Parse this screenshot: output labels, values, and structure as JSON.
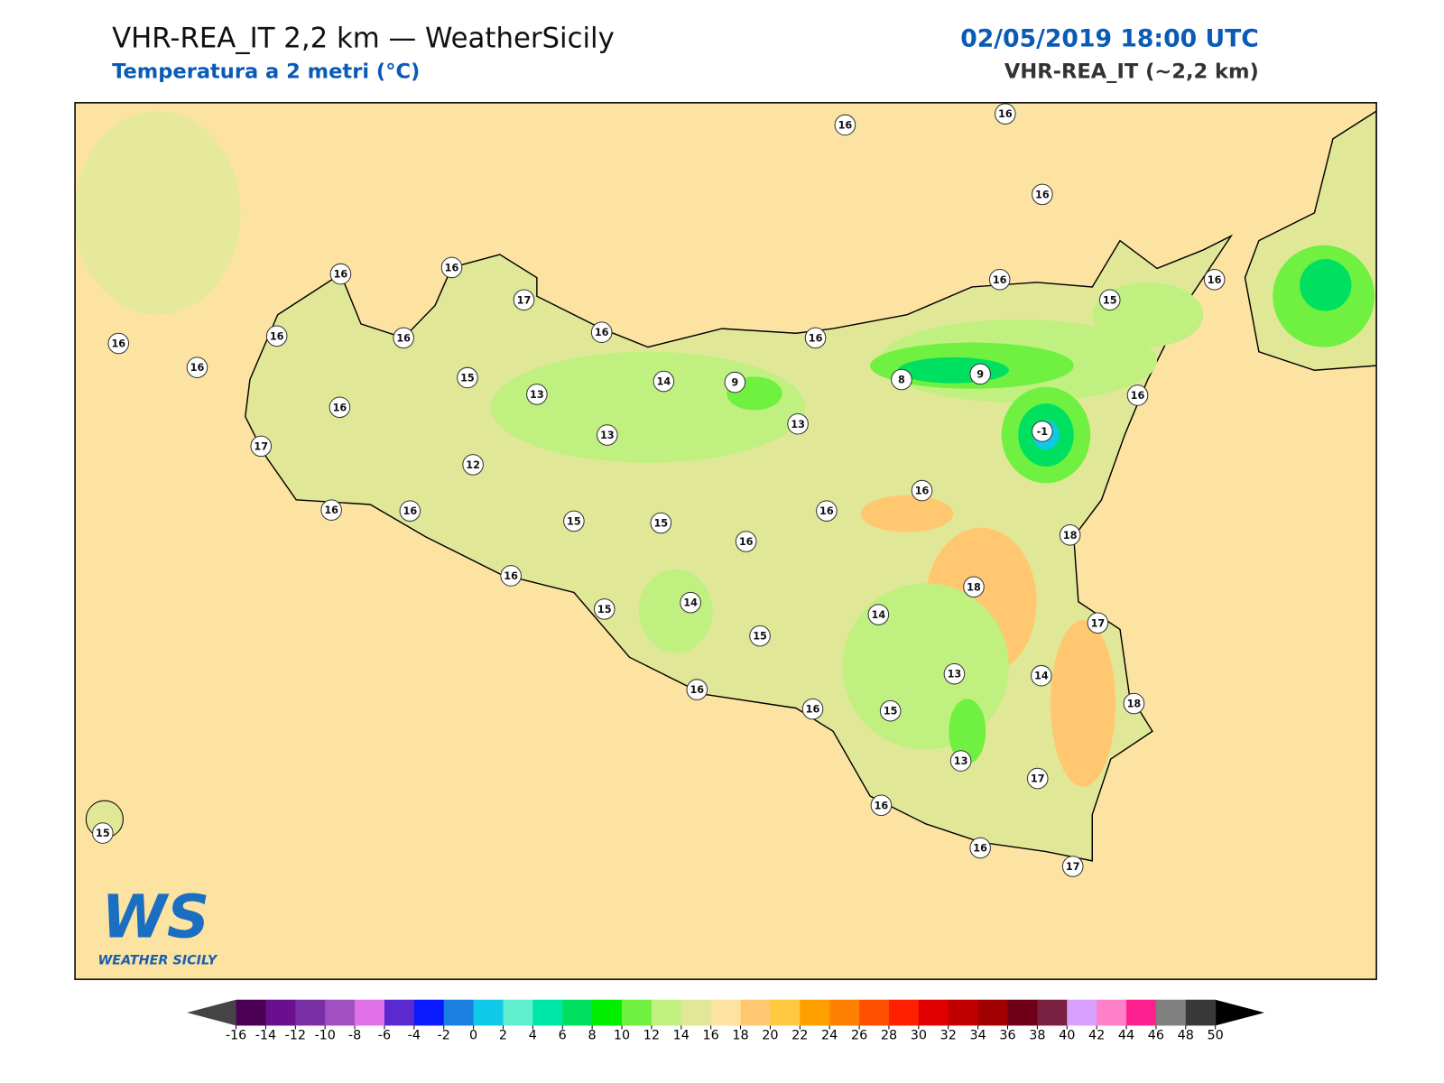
{
  "header": {
    "title": "VHR-REA_IT 2,2 km — WeatherSicily",
    "subtitle": "Temperatura a 2 metri (°C)",
    "datetime": "02/05/2019 18:00 UTC",
    "model": "VHR-REA_IT (~2,2 km)"
  },
  "map": {
    "stations": [
      16,
      16,
      16,
      16,
      16,
      17,
      16,
      16,
      16,
      16,
      16,
      15,
      16,
      13,
      14,
      9,
      16,
      8,
      9,
      16,
      15,
      16,
      16,
      -1,
      13,
      13,
      17,
      12,
      16,
      16,
      15,
      15,
      16,
      16,
      16,
      18,
      16,
      15,
      14,
      15,
      14,
      18,
      17,
      13,
      14,
      16,
      16,
      15,
      18,
      13,
      17,
      16,
      16,
      17,
      15
    ],
    "background_color": "#fde3a1",
    "land_color": "#e0e898"
  },
  "logo": {
    "mark": "WS",
    "name": "WEATHER SICILY"
  },
  "colorbar": {
    "ticks": [
      -16,
      -14,
      -12,
      -10,
      -8,
      -6,
      -4,
      -2,
      0,
      2,
      4,
      6,
      8,
      10,
      12,
      14,
      16,
      18,
      20,
      22,
      24,
      26,
      28,
      30,
      32,
      34,
      36,
      38,
      40,
      42,
      44,
      46,
      48,
      50
    ],
    "colors": [
      "#4b0055",
      "#6a0f8e",
      "#7b2fa5",
      "#a050c0",
      "#e070e8",
      "#5a2ad0",
      "#0a1aff",
      "#1a80e0",
      "#10c8e8",
      "#60f0d0",
      "#00e8a8",
      "#00e060",
      "#00f000",
      "#70f040",
      "#c0f080",
      "#e0e898",
      "#fde3a1",
      "#ffc870",
      "#ffc840",
      "#ffa000",
      "#ff8000",
      "#ff5000",
      "#ff2000",
      "#e00000",
      "#c00000",
      "#a00000",
      "#700018",
      "#7a2040",
      "#d8a0ff",
      "#ff80c8",
      "#ff2090",
      "#808080",
      "#383838"
    ],
    "under_color": "#444444",
    "over_color": "#000000"
  }
}
